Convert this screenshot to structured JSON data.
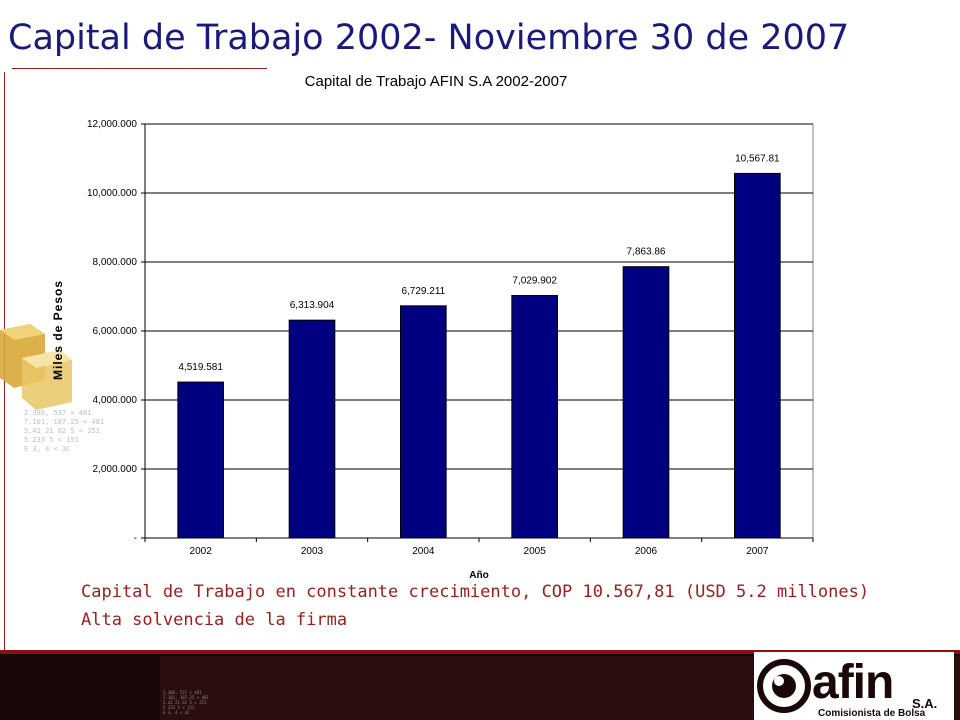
{
  "slide": {
    "title": "Capital de Trabajo 2002- Noviembre 30 de 2007",
    "bullets": [
      "Capital de Trabajo en constante crecimiento,  COP 10.567,81 (USD 5.2 millones)",
      "Alta solvencia de la firma"
    ]
  },
  "chart_data": {
    "type": "bar",
    "title": "Capital de Trabajo AFIN S.A 2002-2007",
    "xlabel": "Año",
    "ylabel": "Miles de Pesos",
    "categories": [
      "2002",
      "2003",
      "2004",
      "2005",
      "2006",
      "2007"
    ],
    "values": [
      4519.581,
      6313.904,
      6729.211,
      7029.902,
      7863.86,
      10567.81
    ],
    "value_labels": [
      "4,519.581",
      "6,313.904",
      "6,729.211",
      "7,029.902",
      "7,863.86",
      "10,567.81"
    ],
    "ylim": [
      0,
      12000
    ],
    "yticks": [
      0,
      2000,
      4000,
      6000,
      8000,
      10000,
      12000
    ],
    "ytick_labels": [
      "-",
      "2,000.000",
      "4,000.000",
      "6,000.000",
      "8,000.000",
      "10,000.000",
      "12,000.000"
    ],
    "grid": true,
    "legend": "none",
    "bar_color": "#000080"
  },
  "colors": {
    "title": "#1a1a7a",
    "accent": "#9a1e1e",
    "footer": "#1a0808"
  },
  "logo": {
    "word": "afin",
    "suffix": "S.A.",
    "tagline": "Comisionista de Bolsa"
  },
  "footer_tiny": [
    "2.386, 537 > 481",
    "7.101, 187.25 < 481",
    "5.42 21 62 5 < 251",
    "5 233 5 < 151",
    "E 3, 4 < 3C"
  ]
}
